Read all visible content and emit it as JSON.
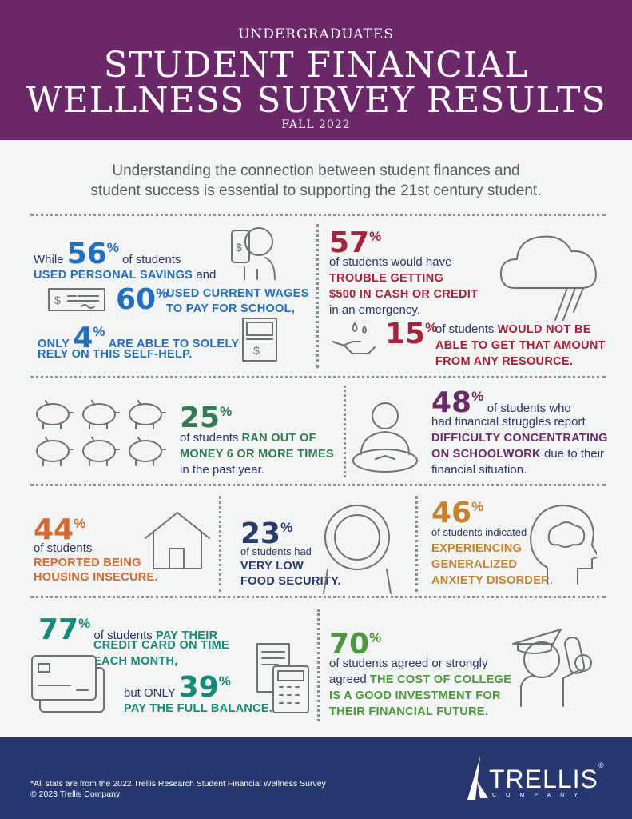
{
  "colors": {
    "header": "#6b2868",
    "footer": "#27376f",
    "blue": "#1f6fc5",
    "crimson": "#a8203c",
    "green": "#2e7d4f",
    "purple": "#6a2a6a",
    "orange": "#d9662a",
    "navy": "#283a6e",
    "tan": "#c8822a",
    "teal": "#0f8c7a",
    "lightgreen": "#4a9a3a"
  },
  "header": {
    "eyebrow": "UNDERGRADUATES",
    "title_line1": "STUDENT FINANCIAL",
    "title_line2": "WELLNESS SURVEY RESULTS",
    "subtitle": "FALL 2022"
  },
  "intro": {
    "line1": "Understanding the connection between student finances and",
    "line2": "student success is essential to supporting the 21st century student."
  },
  "s56": {
    "pre": "While",
    "num": "56",
    "pct": "%",
    "post": "of students",
    "cap": "USED PERSONAL SAVINGS",
    "and": "and"
  },
  "s60": {
    "num": "60",
    "pct": "%",
    "cap1": "USED CURRENT WAGES",
    "cap2": "TO PAY FOR SCHOOL,"
  },
  "s4": {
    "pre": "ONLY",
    "num": "4",
    "pct": "%",
    "cap1": "ARE ABLE TO SOLELY",
    "cap2": "RELY ON THIS SELF-HELP."
  },
  "s57": {
    "num": "57",
    "pct": "%",
    "l1": "of students would have",
    "cap1": "TROUBLE GETTING",
    "cap2": "$500 IN CASH OR CREDIT",
    "l4": "in an emergency."
  },
  "s15": {
    "num": "15",
    "pct": "%",
    "pre": "of students",
    "cap1": "WOULD NOT BE",
    "cap2": "ABLE TO GET THAT AMOUNT",
    "cap3": "FROM ANY RESOURCE."
  },
  "s25": {
    "num": "25",
    "pct": "%",
    "pre": "of students",
    "cap1": "RAN OUT OF",
    "cap2": "MONEY 6 OR MORE TIMES",
    "l4": "in the past year."
  },
  "s48": {
    "num": "48",
    "pct": "%",
    "l1": "of students who",
    "l2": "had financial struggles report",
    "cap1": "DIFFICULTY CONCENTRATING",
    "cap2": "ON SCHOOLWORK",
    "post": "due to their",
    "l5": "financial situation."
  },
  "s44": {
    "num": "44",
    "pct": "%",
    "l1": "of students",
    "cap1": "REPORTED BEING",
    "cap2": "HOUSING INSECURE."
  },
  "s23": {
    "num": "23",
    "pct": "%",
    "l1": "of students had",
    "cap1": "VERY LOW",
    "cap2": "FOOD SECURITY."
  },
  "s46": {
    "num": "46",
    "pct": "%",
    "l1": "of students indicated",
    "cap1": "EXPERIENCING",
    "cap2": "GENERALIZED",
    "cap3": "ANXIETY DISORDER."
  },
  "s77": {
    "num": "77",
    "pct": "%",
    "pre": "of students",
    "cap1": "PAY THEIR",
    "cap2": "CREDIT CARD ON TIME",
    "cap3": "EACH MONTH,"
  },
  "s39": {
    "pre": "but ONLY",
    "num": "39",
    "pct": "%",
    "cap": "PAY THE FULL BALANCE."
  },
  "s70": {
    "num": "70",
    "pct": "%",
    "l1": "of students agreed or strongly",
    "l2": "agreed",
    "cap1": "THE COST OF COLLEGE",
    "cap2": "IS A GOOD INVESTMENT FOR",
    "cap3": "THEIR FINANCIAL FUTURE."
  },
  "footer": {
    "note": "*All stats are from the 2022 Trellis Research Student Financial Wellness Survey",
    "copyright": "© 2023 Trellis Company",
    "logo_name": "TRELLIS",
    "logo_sub": "COMPANY",
    "logo_reg": "®"
  }
}
